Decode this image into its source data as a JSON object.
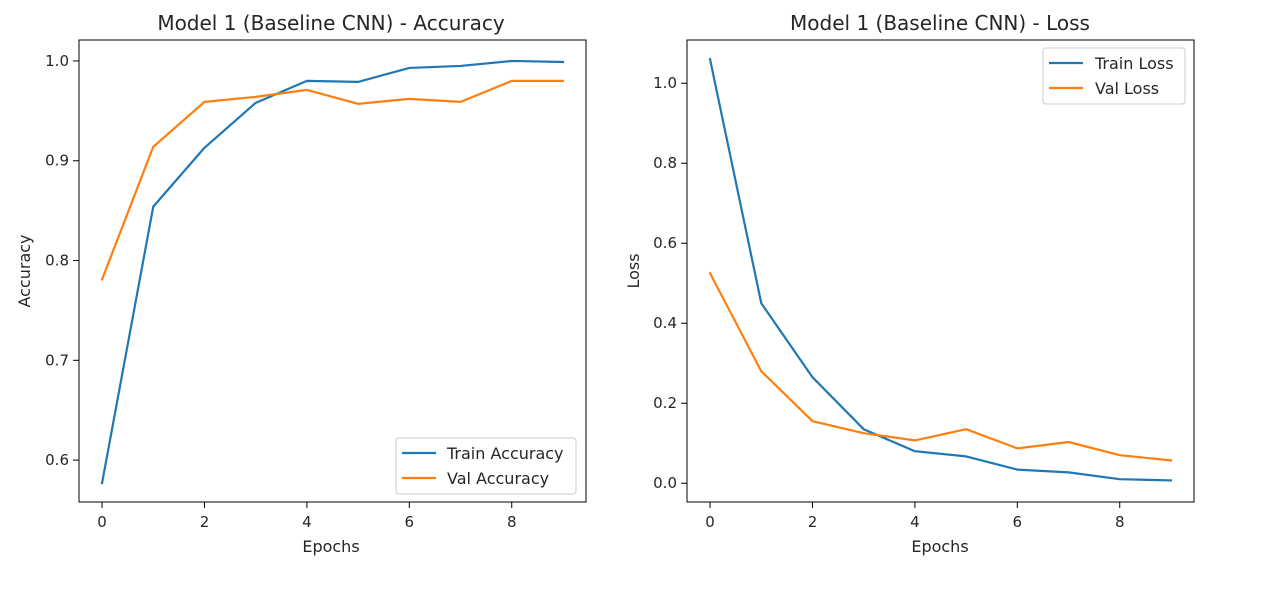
{
  "chart_data": [
    {
      "type": "line",
      "title": "Model 1 (Baseline CNN) - Accuracy",
      "xlabel": "Epochs",
      "ylabel": "Accuracy",
      "x": [
        0,
        1,
        2,
        3,
        4,
        5,
        6,
        7,
        8,
        9
      ],
      "xlim": [
        -0.45,
        9.45
      ],
      "ylim": [
        0.558,
        1.021
      ],
      "xticks": [
        0,
        2,
        4,
        6,
        8
      ],
      "yticks": [
        0.6,
        0.7,
        0.8,
        0.9,
        1.0
      ],
      "ytick_labels": [
        "0.6",
        "0.7",
        "0.8",
        "0.9",
        "1.0"
      ],
      "grid": false,
      "legend_position": "lower-right",
      "series": [
        {
          "name": "Train Accuracy",
          "color": "#1f77b4",
          "values": [
            0.577,
            0.854,
            0.913,
            0.958,
            0.98,
            0.979,
            0.993,
            0.995,
            1.0,
            0.999
          ]
        },
        {
          "name": "Val Accuracy",
          "color": "#ff7f0e",
          "values": [
            0.781,
            0.914,
            0.959,
            0.964,
            0.971,
            0.957,
            0.962,
            0.959,
            0.98,
            0.98
          ]
        }
      ]
    },
    {
      "type": "line",
      "title": "Model 1 (Baseline CNN) - Loss",
      "xlabel": "Epochs",
      "ylabel": "Loss",
      "x": [
        0,
        1,
        2,
        3,
        4,
        5,
        6,
        7,
        8,
        9
      ],
      "xlim": [
        -0.45,
        9.45
      ],
      "ylim": [
        -0.047,
        1.108
      ],
      "xticks": [
        0,
        2,
        4,
        6,
        8
      ],
      "yticks": [
        0.0,
        0.2,
        0.4,
        0.6,
        0.8,
        1.0
      ],
      "ytick_labels": [
        "0.0",
        "0.2",
        "0.4",
        "0.6",
        "0.8",
        "1.0"
      ],
      "grid": false,
      "legend_position": "upper-right",
      "series": [
        {
          "name": "Train Loss",
          "color": "#1f77b4",
          "values": [
            1.06,
            0.45,
            0.265,
            0.135,
            0.08,
            0.067,
            0.034,
            0.027,
            0.01,
            0.007
          ]
        },
        {
          "name": "Val Loss",
          "color": "#ff7f0e",
          "values": [
            0.525,
            0.28,
            0.155,
            0.125,
            0.107,
            0.135,
            0.087,
            0.103,
            0.07,
            0.057
          ]
        }
      ]
    }
  ]
}
